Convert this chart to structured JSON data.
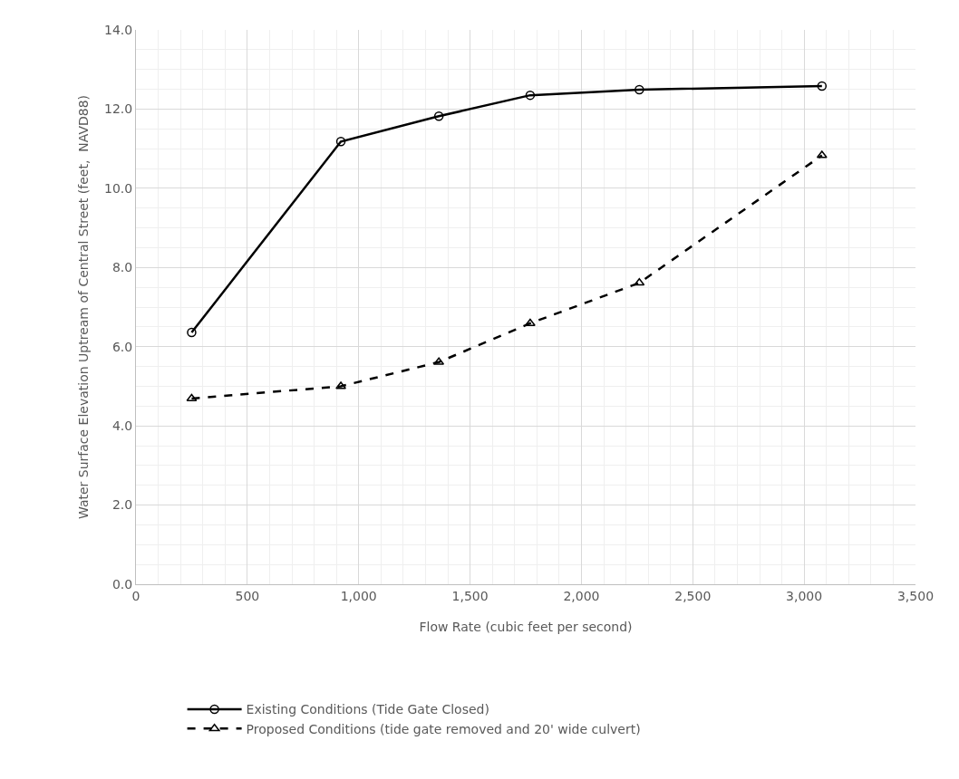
{
  "chart_data": {
    "type": "line",
    "xlabel": "Flow Rate (cubic feet per second)",
    "ylabel": "Water Surface Elevation Uptream of Central Street (feet,  NAVD88)",
    "x": [
      250,
      920,
      1360,
      1770,
      2260,
      3080
    ],
    "series": [
      {
        "name": "Existing Conditions (Tide Gate Closed)",
        "color": "#000000",
        "marker": "circle",
        "line_style": "solid",
        "values": [
          6.36,
          11.18,
          11.82,
          12.35,
          12.49,
          12.58
        ]
      },
      {
        "name": "Proposed Conditions (tide gate removed and 20' wide culvert)",
        "color": "#000000",
        "marker": "triangle",
        "line_style": "dashed",
        "values": [
          4.69,
          5.0,
          5.61,
          6.59,
          7.61,
          10.83
        ]
      }
    ],
    "xlim": [
      0,
      3500
    ],
    "xticks": [
      {
        "value": 0,
        "label": "0"
      },
      {
        "value": 500,
        "label": "500"
      },
      {
        "value": 1000,
        "label": "1,000"
      },
      {
        "value": 1500,
        "label": "1,500"
      },
      {
        "value": 2000,
        "label": "2,000"
      },
      {
        "value": 2500,
        "label": "2,500"
      },
      {
        "value": 3000,
        "label": "3,000"
      },
      {
        "value": 3500,
        "label": "3,500"
      }
    ],
    "ylim": [
      0,
      14
    ],
    "yticks": [
      {
        "value": 0,
        "label": "0.0"
      },
      {
        "value": 2,
        "label": "2.0"
      },
      {
        "value": 4,
        "label": "4.0"
      },
      {
        "value": 6,
        "label": "6.0"
      },
      {
        "value": 8,
        "label": "8.0"
      },
      {
        "value": 10,
        "label": "10.0"
      },
      {
        "value": 12,
        "label": "12.0"
      },
      {
        "value": 14,
        "label": "14.0"
      }
    ],
    "grid": true,
    "legend": "bottom"
  }
}
